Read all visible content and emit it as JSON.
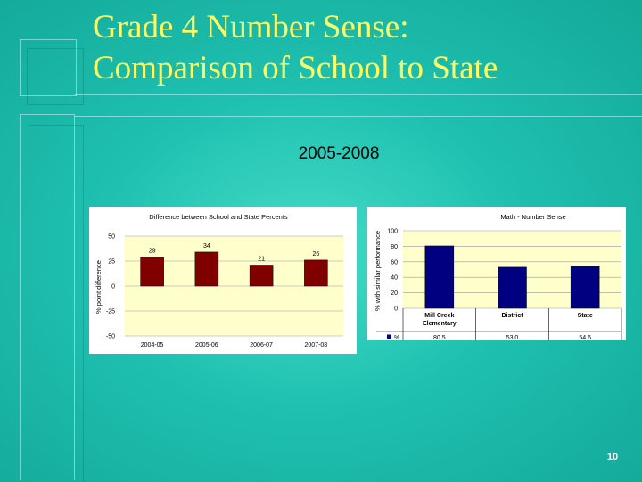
{
  "slide": {
    "title_line1": "Grade 4 Number Sense:",
    "title_line2": "Comparison of School to State",
    "subtitle": "2005-2008",
    "page_number": "10"
  },
  "colors": {
    "title": "#ffff66",
    "bar": "#800000",
    "bar2": "#000080",
    "plot_bg": "#ffffcc"
  },
  "chart_data": [
    {
      "type": "bar",
      "title": "Difference between School and State Percents",
      "ylabel": "% point difference",
      "categories": [
        "2004-05",
        "2005-06",
        "2006-07",
        "2007-08"
      ],
      "values": [
        29,
        34,
        21,
        26
      ],
      "data_labels": [
        "29",
        "34",
        "21",
        "26"
      ],
      "yticks": [
        "50",
        "25",
        "0",
        "-25",
        "-50"
      ],
      "ylim": [
        -50,
        50
      ]
    },
    {
      "type": "bar",
      "title": "Math - Number Sense",
      "ylabel": "% with similar performance",
      "categories": [
        "Mill Creek Elementary",
        "District",
        "State"
      ],
      "values": [
        80.5,
        53.0,
        54.6
      ],
      "table": {
        "legend": "%",
        "values": [
          "80.5",
          "53.0",
          "54.6"
        ]
      },
      "yticks": [
        "100",
        "80",
        "60",
        "40",
        "20",
        "0"
      ],
      "ylim": [
        0,
        100
      ]
    }
  ]
}
